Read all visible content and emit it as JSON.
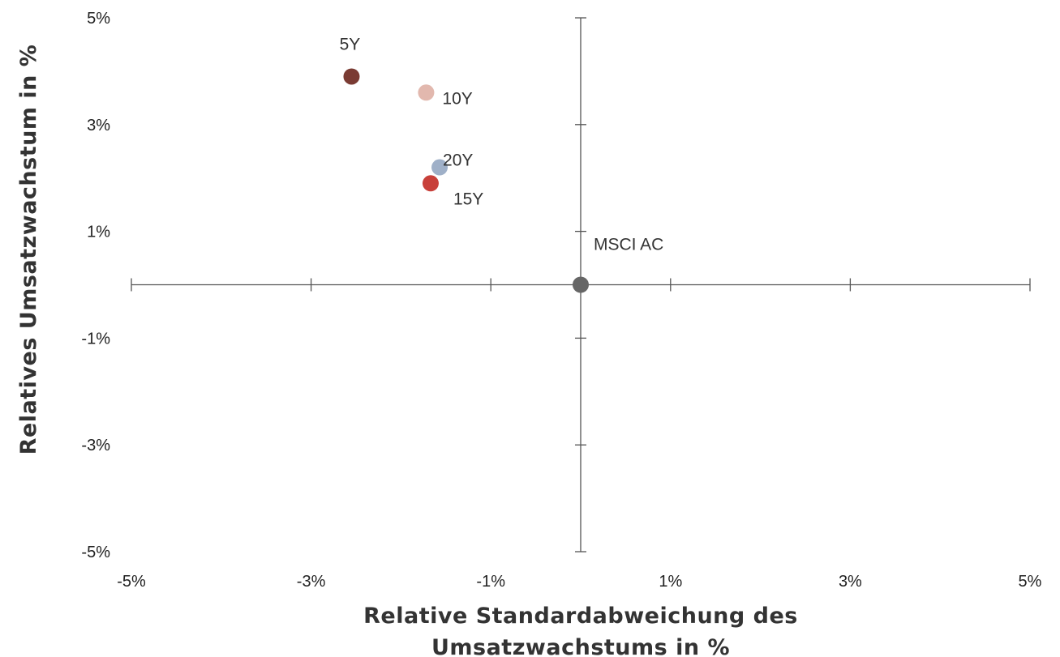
{
  "chart_data": {
    "type": "scatter",
    "title": "",
    "xlabel_lines": [
      "Relative Standardabweichung des",
      "Umsatzwachstums in %"
    ],
    "ylabel": "Relatives Umsatzwachstum in %",
    "xlim": [
      -5,
      5
    ],
    "ylim": [
      -5,
      5
    ],
    "x_tick_labels": [
      "-5%",
      "-3%",
      "-1%",
      "1%",
      "3%",
      "5%"
    ],
    "y_tick_labels": [
      "5%",
      "3%",
      "1%",
      "-1%",
      "-3%",
      "-5%"
    ],
    "grid": false,
    "axes_cross_at_origin": true,
    "points": [
      {
        "label": "5Y",
        "x": -2.55,
        "y": 3.9,
        "color": "#7a3b33"
      },
      {
        "label": "10Y",
        "x": -1.72,
        "y": 3.6,
        "color": "#e2b8ae"
      },
      {
        "label": "20Y",
        "x": -1.57,
        "y": 2.2,
        "color": "#9fb0c8"
      },
      {
        "label": "15Y",
        "x": -1.67,
        "y": 1.9,
        "color": "#c8403a"
      },
      {
        "label": "MSCI AC",
        "x": 0,
        "y": 0,
        "color": "#666666"
      }
    ],
    "axis_color": "#555555"
  }
}
